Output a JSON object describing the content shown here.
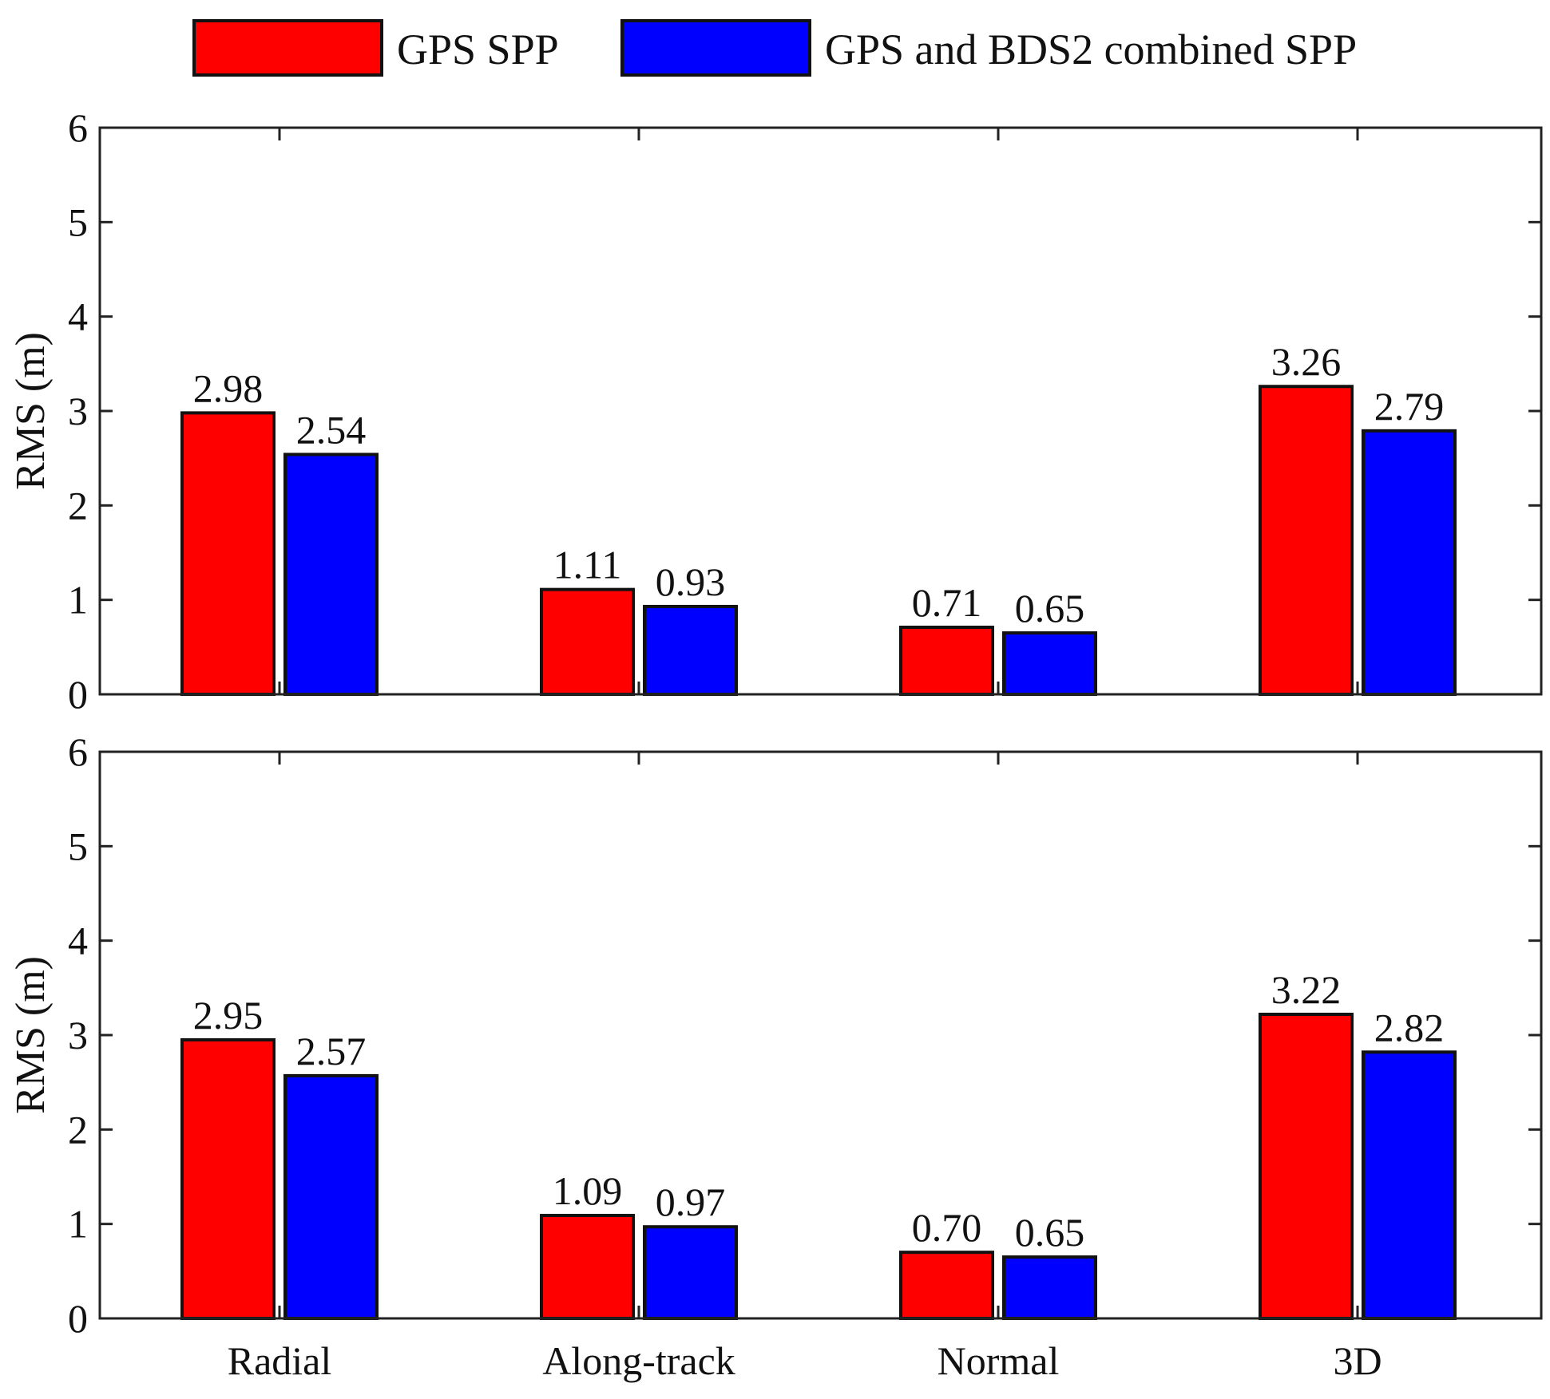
{
  "chart_data": {
    "type": "bar",
    "legend": [
      {
        "name": "GPS SPP",
        "color": "#ff0000"
      },
      {
        "name": "GPS and BDS2 combined SPP",
        "color": "#0000ff"
      }
    ],
    "legend_position": "top-center",
    "categories": [
      "Radial",
      "Along-track",
      "Normal",
      "3D"
    ],
    "panels": [
      {
        "ylabel": "RMS (m)",
        "ylim": [
          0,
          6
        ],
        "yticks": [
          0,
          1,
          2,
          3,
          4,
          5,
          6
        ],
        "series": [
          {
            "name": "GPS SPP",
            "values": [
              2.98,
              1.11,
              0.71,
              3.26
            ],
            "labels": [
              "2.98",
              "1.11",
              "0.71",
              "3.26"
            ]
          },
          {
            "name": "GPS and BDS2 combined SPP",
            "values": [
              2.54,
              0.93,
              0.65,
              2.79
            ],
            "labels": [
              "2.54",
              "0.93",
              "0.65",
              "2.79"
            ]
          }
        ]
      },
      {
        "ylabel": "RMS (m)",
        "ylim": [
          0,
          6
        ],
        "yticks": [
          0,
          1,
          2,
          3,
          4,
          5,
          6
        ],
        "series": [
          {
            "name": "GPS SPP",
            "values": [
              2.95,
              1.09,
              0.7,
              3.22
            ],
            "labels": [
              "2.95",
              "1.09",
              "0.70",
              "3.22"
            ]
          },
          {
            "name": "GPS and BDS2 combined SPP",
            "values": [
              2.57,
              0.97,
              0.65,
              2.82
            ],
            "labels": [
              "2.57",
              "0.97",
              "0.65",
              "2.82"
            ]
          }
        ]
      }
    ],
    "grid": false
  }
}
